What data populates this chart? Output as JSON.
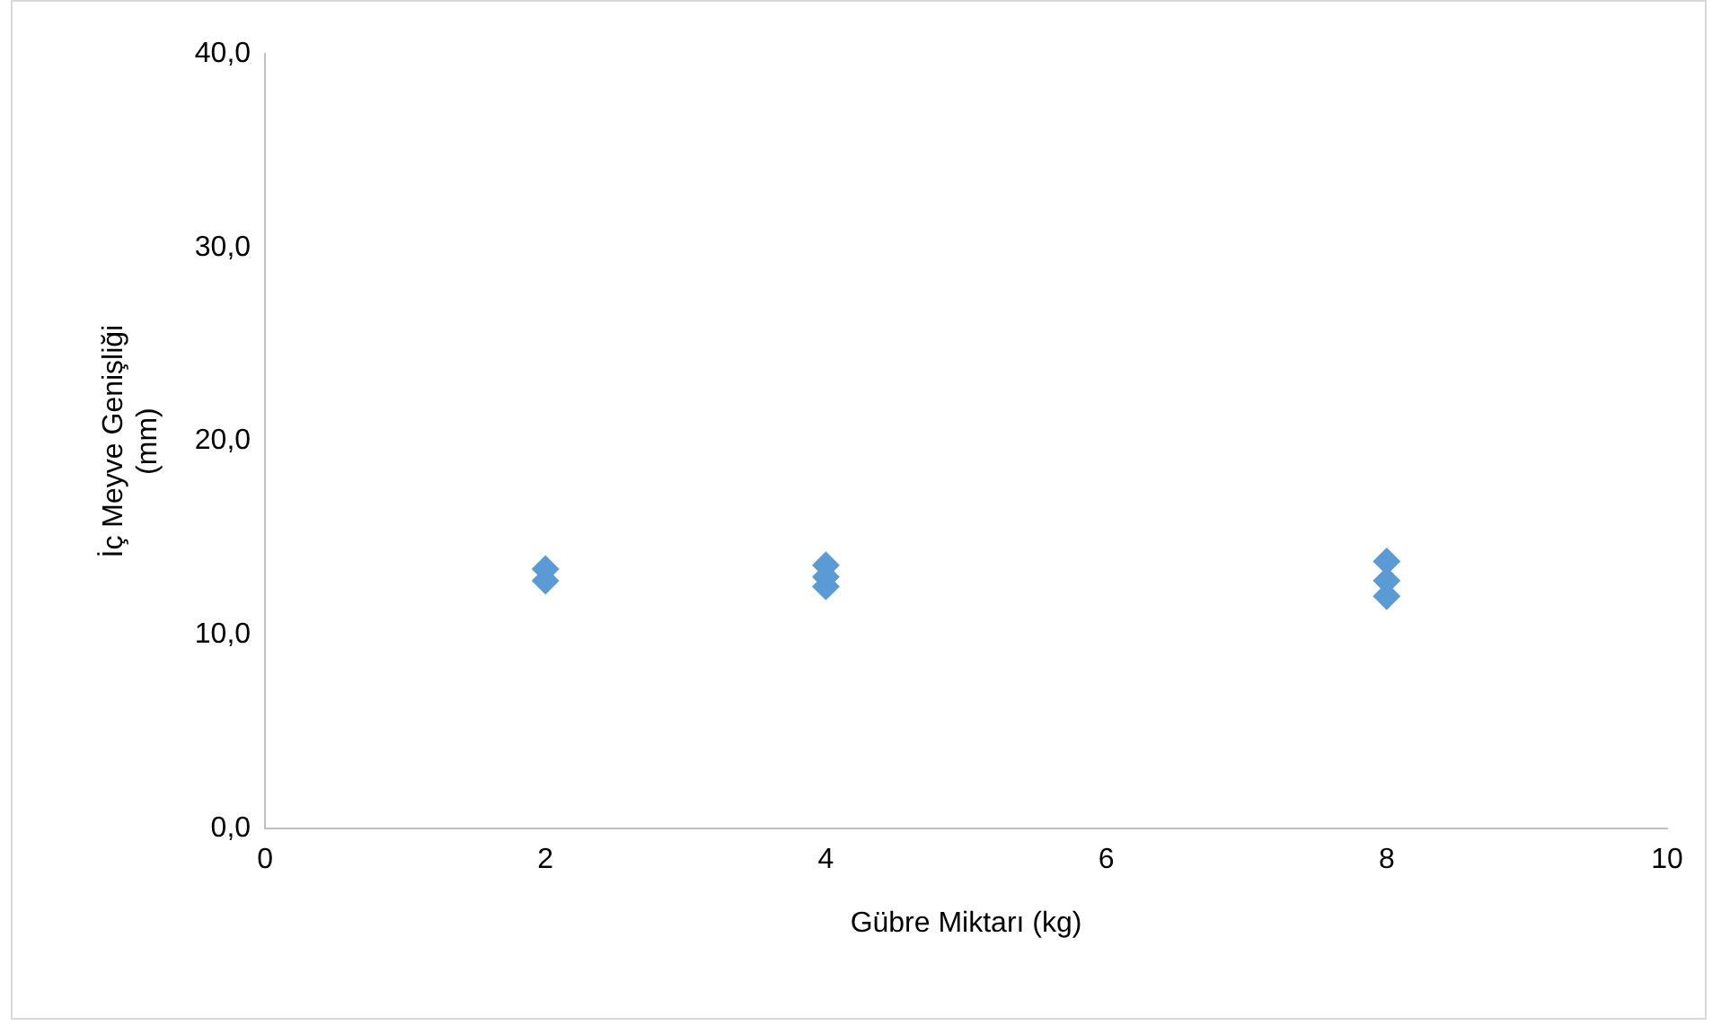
{
  "chart_data": {
    "type": "scatter",
    "xlabel": "Gübre Miktarı (kg)",
    "ylabel": "İç Meyve Genişliği (mm)",
    "series": [
      {
        "color": "#5b9bd5",
        "x": [
          2,
          2,
          4,
          4,
          4,
          8,
          8,
          8
        ],
        "values": [
          13.4,
          12.8,
          13.6,
          13.0,
          12.5,
          13.8,
          12.8,
          12.0
        ]
      }
    ],
    "xlim": [
      0,
      10
    ],
    "xticks": [
      0,
      2,
      4,
      6,
      8,
      10
    ],
    "ylim": [
      0,
      40
    ],
    "yticks": [
      {
        "value": 0,
        "label": "0,0"
      },
      {
        "value": 10,
        "label": "10,0"
      },
      {
        "value": 20,
        "label": "20,0"
      },
      {
        "value": 30,
        "label": "30,0"
      },
      {
        "value": 40,
        "label": "40,0"
      }
    ],
    "grid": false,
    "legend": false,
    "marker": "diamond"
  }
}
